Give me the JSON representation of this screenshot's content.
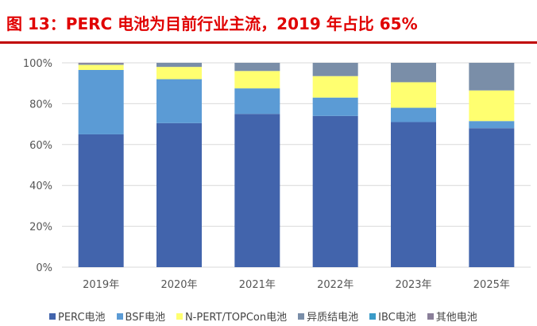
{
  "title": "图 13：PERC 电池为目前行业主流，2019 年占比 65%",
  "chart_data": {
    "type": "bar",
    "stacked": true,
    "categories": [
      "2019年",
      "2020年",
      "2021年",
      "2022年",
      "2023年",
      "2025年"
    ],
    "yticks": [
      "0%",
      "20%",
      "40%",
      "60%",
      "80%",
      "100%"
    ],
    "ylim": [
      0,
      100
    ],
    "grid": true,
    "legend_position": "bottom",
    "series": [
      {
        "name": "PERC电池",
        "color": "#4264ac",
        "values": [
          65,
          70.5,
          75,
          74,
          71,
          68
        ]
      },
      {
        "name": "BSF电池",
        "color": "#5b9bd5",
        "values": [
          31.5,
          21.5,
          12.5,
          9,
          7,
          3.5
        ]
      },
      {
        "name": "N-PERT/TOPCon电池",
        "color": "#ffff70",
        "values": [
          2.5,
          6,
          8.5,
          10.5,
          12.5,
          15
        ]
      },
      {
        "name": "异质结电池",
        "color": "#7a8ea8",
        "values": [
          0.5,
          2,
          4,
          6.5,
          9.5,
          13.5
        ]
      },
      {
        "name": "IBC电池",
        "color": "#3a9bc8",
        "values": [
          0,
          0,
          0,
          0,
          0,
          0
        ]
      },
      {
        "name": "其他电池",
        "color": "#8a7f99",
        "values": [
          0.5,
          0,
          0,
          0,
          0,
          0
        ]
      }
    ]
  }
}
